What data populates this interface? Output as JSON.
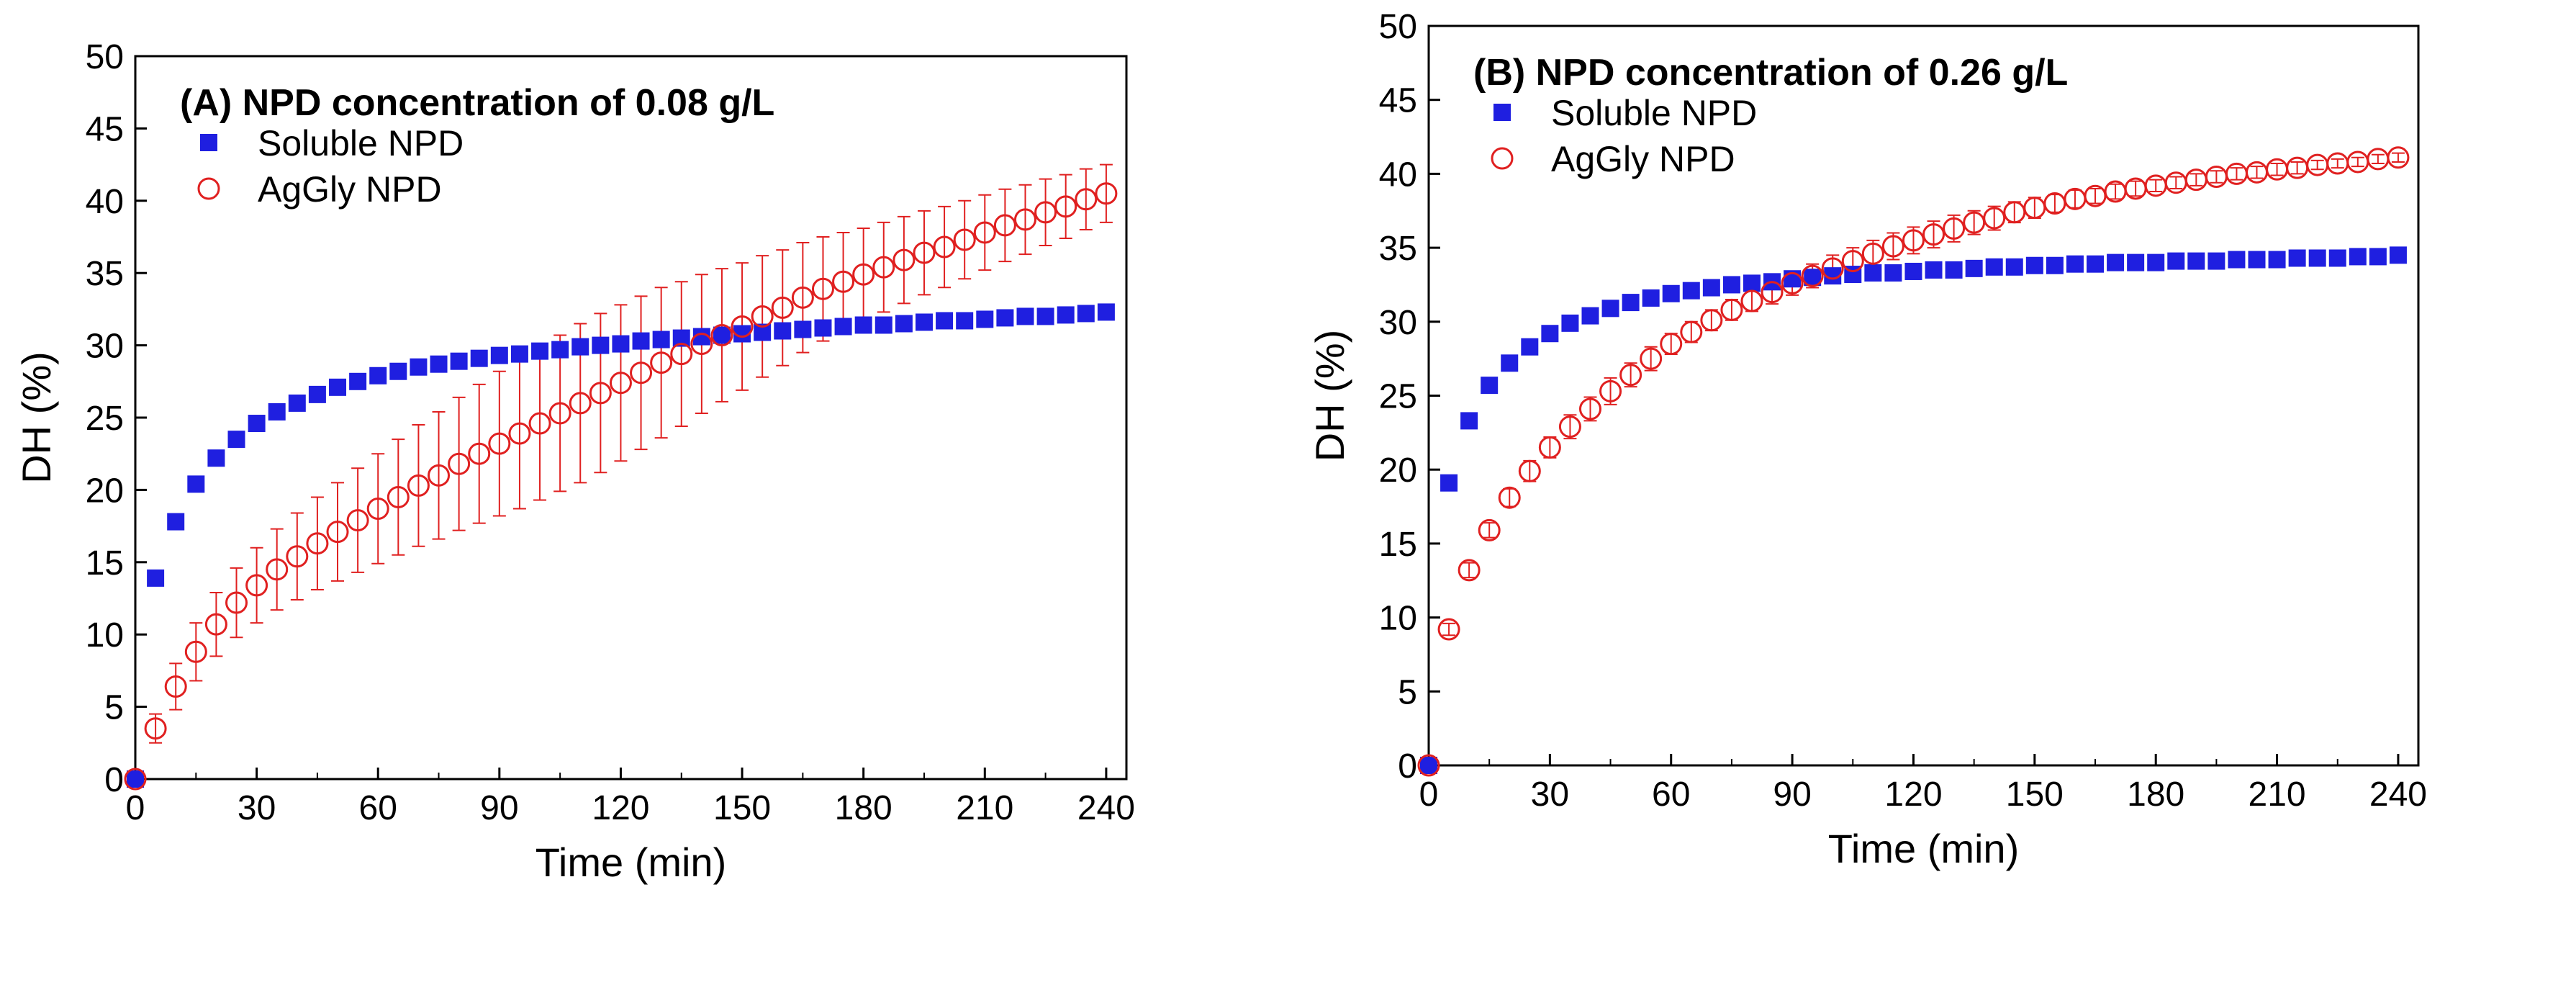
{
  "chart_data": [
    {
      "type": "scatter",
      "title": "(A) NPD concentration of 0.08 g/L",
      "xlabel": "Time (min)",
      "ylabel": "DH (%)",
      "xlim": [
        0,
        245
      ],
      "ylim": [
        0,
        50
      ],
      "xticks": [
        0,
        30,
        60,
        90,
        120,
        150,
        180,
        210,
        240
      ],
      "yticks": [
        0,
        5,
        10,
        15,
        20,
        25,
        30,
        35,
        40,
        45,
        50
      ],
      "legend": {
        "position": "top-left"
      },
      "series": [
        {
          "name": "Soluble NPD",
          "marker": "filled-square",
          "color": "#1f1fe0",
          "x": [
            0,
            5,
            10,
            15,
            20,
            25,
            30,
            35,
            40,
            45,
            50,
            55,
            60,
            65,
            70,
            75,
            80,
            85,
            90,
            95,
            100,
            105,
            110,
            115,
            120,
            125,
            130,
            135,
            140,
            145,
            150,
            155,
            160,
            165,
            170,
            175,
            180,
            185,
            190,
            195,
            200,
            205,
            210,
            215,
            220,
            225,
            230,
            235,
            240
          ],
          "y": [
            0,
            13.9,
            17.8,
            20.4,
            22.2,
            23.5,
            24.6,
            25.4,
            26.0,
            26.6,
            27.1,
            27.5,
            27.9,
            28.2,
            28.5,
            28.7,
            28.9,
            29.1,
            29.3,
            29.4,
            29.6,
            29.7,
            29.9,
            30.0,
            30.1,
            30.3,
            30.4,
            30.5,
            30.6,
            30.7,
            30.8,
            30.9,
            31.0,
            31.1,
            31.2,
            31.3,
            31.4,
            31.4,
            31.5,
            31.6,
            31.7,
            31.7,
            31.8,
            31.9,
            32.0,
            32.0,
            32.1,
            32.2,
            32.3
          ]
        },
        {
          "name": "AgGly NPD",
          "marker": "open-circle",
          "color": "#e02020",
          "x": [
            0,
            5,
            10,
            15,
            20,
            25,
            30,
            35,
            40,
            45,
            50,
            55,
            60,
            65,
            70,
            75,
            80,
            85,
            90,
            95,
            100,
            105,
            110,
            115,
            120,
            125,
            130,
            135,
            140,
            145,
            150,
            155,
            160,
            165,
            170,
            175,
            180,
            185,
            190,
            195,
            200,
            205,
            210,
            215,
            220,
            225,
            230,
            235,
            240
          ],
          "y": [
            0,
            3.5,
            6.4,
            8.8,
            10.7,
            12.2,
            13.4,
            14.5,
            15.4,
            16.3,
            17.1,
            17.9,
            18.7,
            19.5,
            20.3,
            21.0,
            21.8,
            22.5,
            23.2,
            23.9,
            24.6,
            25.3,
            26.0,
            26.7,
            27.4,
            28.1,
            28.8,
            29.4,
            30.1,
            30.7,
            31.3,
            32.0,
            32.6,
            33.3,
            33.9,
            34.4,
            34.9,
            35.4,
            35.9,
            36.4,
            36.8,
            37.3,
            37.8,
            38.3,
            38.7,
            39.2,
            39.6,
            40.1,
            40.5
          ],
          "error": [
            0,
            1.0,
            1.6,
            2.0,
            2.2,
            2.4,
            2.6,
            2.8,
            3.0,
            3.2,
            3.4,
            3.6,
            3.8,
            4.0,
            4.2,
            4.4,
            4.6,
            4.8,
            5.0,
            5.2,
            5.3,
            5.4,
            5.5,
            5.5,
            5.4,
            5.3,
            5.2,
            5.0,
            4.8,
            4.6,
            4.4,
            4.2,
            4.0,
            3.8,
            3.6,
            3.4,
            3.2,
            3.1,
            3.0,
            2.9,
            2.8,
            2.7,
            2.6,
            2.5,
            2.4,
            2.3,
            2.2,
            2.1,
            2.0
          ]
        }
      ]
    },
    {
      "type": "scatter",
      "title": "(B) NPD concentration of 0.26 g/L",
      "xlabel": "Time (min)",
      "ylabel": "DH (%)",
      "xlim": [
        0,
        245
      ],
      "ylim": [
        0,
        50
      ],
      "xticks": [
        0,
        30,
        60,
        90,
        120,
        150,
        180,
        210,
        240
      ],
      "yticks": [
        0,
        5,
        10,
        15,
        20,
        25,
        30,
        35,
        40,
        45,
        50
      ],
      "legend": {
        "position": "top-left"
      },
      "series": [
        {
          "name": "Soluble NPD",
          "marker": "filled-square",
          "color": "#1f1fe0",
          "x": [
            0,
            5,
            10,
            15,
            20,
            25,
            30,
            35,
            40,
            45,
            50,
            55,
            60,
            65,
            70,
            75,
            80,
            85,
            90,
            95,
            100,
            105,
            110,
            115,
            120,
            125,
            130,
            135,
            140,
            145,
            150,
            155,
            160,
            165,
            170,
            175,
            180,
            185,
            190,
            195,
            200,
            205,
            210,
            215,
            220,
            225,
            230,
            235,
            240
          ],
          "y": [
            0,
            19.1,
            23.3,
            25.7,
            27.2,
            28.3,
            29.2,
            29.9,
            30.4,
            30.9,
            31.3,
            31.6,
            31.9,
            32.1,
            32.3,
            32.5,
            32.6,
            32.7,
            32.9,
            33.0,
            33.1,
            33.2,
            33.3,
            33.3,
            33.4,
            33.5,
            33.5,
            33.6,
            33.7,
            33.7,
            33.8,
            33.8,
            33.9,
            33.9,
            34.0,
            34.0,
            34.0,
            34.1,
            34.1,
            34.1,
            34.2,
            34.2,
            34.2,
            34.3,
            34.3,
            34.3,
            34.4,
            34.4,
            34.5
          ]
        },
        {
          "name": "AgGly NPD",
          "marker": "open-circle",
          "color": "#e02020",
          "x": [
            0,
            5,
            10,
            15,
            20,
            25,
            30,
            35,
            40,
            45,
            50,
            55,
            60,
            65,
            70,
            75,
            80,
            85,
            90,
            95,
            100,
            105,
            110,
            115,
            120,
            125,
            130,
            135,
            140,
            145,
            150,
            155,
            160,
            165,
            170,
            175,
            180,
            185,
            190,
            195,
            200,
            205,
            210,
            215,
            220,
            225,
            230,
            235,
            240
          ],
          "y": [
            0,
            9.2,
            13.2,
            15.9,
            18.1,
            19.9,
            21.5,
            22.9,
            24.1,
            25.3,
            26.4,
            27.5,
            28.5,
            29.3,
            30.1,
            30.8,
            31.4,
            32.0,
            32.6,
            33.1,
            33.6,
            34.1,
            34.6,
            35.1,
            35.5,
            35.9,
            36.3,
            36.7,
            37.0,
            37.4,
            37.7,
            38.0,
            38.3,
            38.5,
            38.8,
            39.0,
            39.2,
            39.4,
            39.6,
            39.8,
            40.0,
            40.1,
            40.3,
            40.4,
            40.6,
            40.7,
            40.8,
            41.0,
            41.1
          ],
          "error": [
            0,
            0.4,
            0.5,
            0.5,
            0.6,
            0.7,
            0.7,
            0.8,
            0.8,
            0.9,
            0.8,
            0.8,
            0.7,
            0.7,
            0.7,
            0.7,
            0.7,
            0.8,
            0.8,
            0.8,
            0.9,
            0.9,
            0.9,
            0.9,
            0.9,
            0.9,
            0.9,
            0.8,
            0.8,
            0.7,
            0.7,
            0.6,
            0.6,
            0.5,
            0.5,
            0.5,
            0.4,
            0.4,
            0.4,
            0.4,
            0.4,
            0.4,
            0.4,
            0.4,
            0.3,
            0.3,
            0.3,
            0.3,
            0.3
          ]
        }
      ]
    }
  ]
}
